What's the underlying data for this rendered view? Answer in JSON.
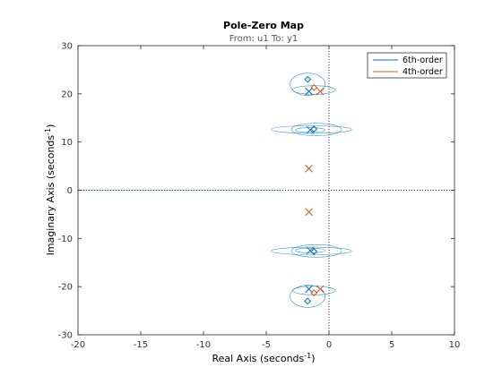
{
  "chart_data": {
    "type": "scatter",
    "title": "Pole-Zero Map",
    "subtitle": "From: u1  To: y1",
    "xlabel": "Real Axis (seconds",
    "ylabel": "Imaginary Axis (seconds",
    "label_exponent": "-1",
    "xlim": [
      -20,
      10
    ],
    "ylim": [
      -30,
      30
    ],
    "xticks": [
      -20,
      -15,
      -10,
      -5,
      0,
      5,
      10
    ],
    "yticks": [
      -30,
      -20,
      -10,
      0,
      10,
      20,
      30
    ],
    "xtick_labels": [
      "-20",
      "-15",
      "-10",
      "-5",
      "0",
      "5",
      "10"
    ],
    "ytick_labels": [
      "-30",
      "-20",
      "-10",
      "0",
      "10",
      "20",
      "30"
    ],
    "grid": false,
    "legend_position": "top-right",
    "series": [
      {
        "name": "6th-order",
        "color": "#0072bd",
        "poles": [
          [
            -1.6,
            20.5
          ],
          [
            -1.6,
            -20.5
          ],
          [
            -1.5,
            12.5
          ],
          [
            -1.5,
            -12.5
          ]
        ],
        "zeros": [
          [
            -1.7,
            23.0
          ],
          [
            -1.7,
            -23.0
          ],
          [
            -1.2,
            12.7
          ],
          [
            -1.2,
            -12.7
          ]
        ]
      },
      {
        "name": "4th-order",
        "color": "#d95319",
        "poles": [
          [
            -0.7,
            20.5
          ],
          [
            -0.7,
            -20.5
          ],
          [
            -1.6,
            4.5
          ],
          [
            -1.6,
            -4.5
          ]
        ],
        "zeros": [
          [
            -1.2,
            21.3
          ],
          [
            -1.2,
            -21.3
          ]
        ]
      }
    ]
  }
}
